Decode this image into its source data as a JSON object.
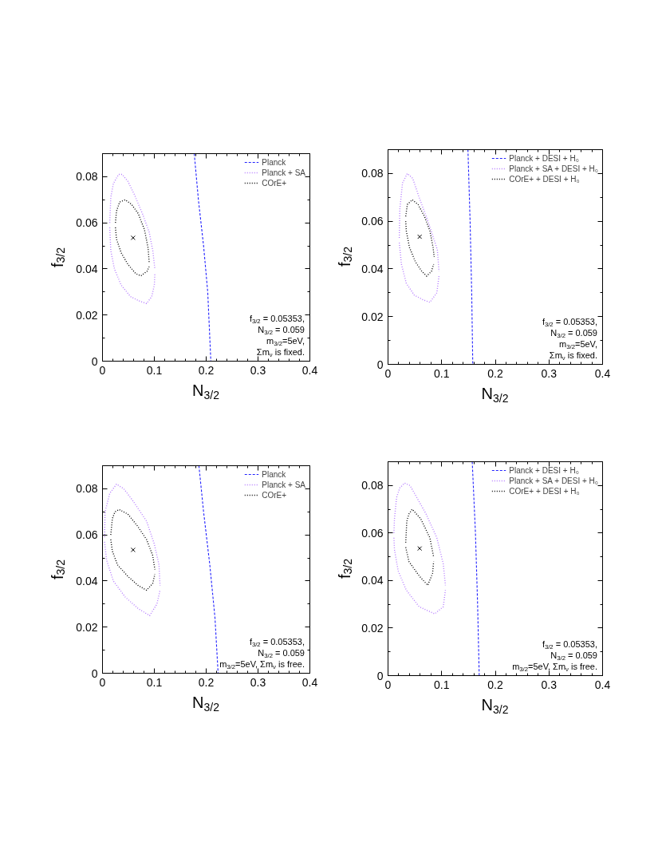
{
  "chart_data": [
    {
      "type": "line",
      "xlabel": "N$_{3/2}$",
      "ylabel": "f$_{3/2}$",
      "xlim": [
        0,
        0.4
      ],
      "ylim": [
        0,
        0.09
      ],
      "xticks": [
        0,
        0.1,
        0.2,
        0.3,
        0.4
      ],
      "yticks": [
        0,
        0.02,
        0.04,
        0.06,
        0.08
      ],
      "legend": "top right",
      "annotations": [
        "f$_{3/2}$ = 0.05353, N$_{3/2}$ = 0.059",
        "m$_{3/2}$=5eV, Σm$_{ν}$ is fixed."
      ],
      "series": [
        {
          "name": "Planck",
          "color": "#2020ff",
          "line_style": "dashed",
          "x": [
            0.177,
            0.185,
            0.195,
            0.203,
            0.207,
            0.209
          ],
          "values": [
            0.09,
            0.07,
            0.05,
            0.03,
            0.01,
            0
          ]
        },
        {
          "name": "Planck + SA",
          "color": "#b57bff",
          "line_style": "dotted",
          "x": [
            0.014,
            0.016,
            0.021,
            0.031,
            0.038,
            0.049,
            0.062,
            0.077,
            0.09,
            0.097,
            0.101
          ],
          "values": [
            0.06,
            0.071,
            0.077,
            0.081,
            0.081,
            0.078,
            0.072,
            0.064,
            0.056,
            0.048,
            0.04
          ]
        },
        {
          "color": "#b57bff",
          "line_style": "dotted",
          "x": [
            0.014,
            0.016,
            0.023,
            0.036,
            0.054,
            0.072,
            0.085,
            0.095,
            0.1,
            0.101
          ],
          "values": [
            0.058,
            0.048,
            0.04,
            0.033,
            0.028,
            0.026,
            0.025,
            0.028,
            0.033,
            0.038
          ]
        },
        {
          "name": "COrE+",
          "color": "#000000",
          "line_style": "dotted",
          "x": [
            0.025,
            0.027,
            0.033,
            0.044,
            0.056,
            0.069,
            0.081,
            0.088,
            0.09
          ],
          "values": [
            0.06,
            0.065,
            0.069,
            0.07,
            0.068,
            0.064,
            0.057,
            0.049,
            0.043
          ]
        },
        {
          "color": "#000000",
          "line_style": "dotted",
          "x": [
            0.025,
            0.027,
            0.036,
            0.049,
            0.064,
            0.074,
            0.086,
            0.09
          ],
          "values": [
            0.058,
            0.053,
            0.047,
            0.042,
            0.038,
            0.037,
            0.039,
            0.041
          ]
        },
        {
          "type": "scatter",
          "marker": "cross",
          "color": "#000000",
          "x": [
            0.059
          ],
          "values": [
            0.0535
          ]
        }
      ]
    },
    {
      "type": "line",
      "xlabel": "N$_{3/2}$",
      "ylabel": "f$_{3/2}$",
      "xlim": [
        0,
        0.4
      ],
      "ylim": [
        0,
        0.09
      ],
      "xticks": [
        0,
        0.1,
        0.2,
        0.3,
        0.4
      ],
      "yticks": [
        0,
        0.02,
        0.04,
        0.06,
        0.08
      ],
      "legend": "top right",
      "annotations": [
        "f$_{3/2}$ = 0.05353, N$_{3/2}$ = 0.059",
        "m$_{3/2}$=5eV, Σm$_{ν}$ is fixed."
      ],
      "series": [
        {
          "name": "Planck + DESI + H₀",
          "color": "#2020ff",
          "line_style": "dashed",
          "x": [
            0.149,
            0.153,
            0.156,
            0.158
          ],
          "values": [
            0.09,
            0.06,
            0.03,
            0
          ]
        },
        {
          "name": "Planck + SA + DESI + H₀",
          "color": "#b57bff",
          "line_style": "dotted",
          "x": [
            0.021,
            0.022,
            0.027,
            0.036,
            0.046,
            0.058,
            0.076,
            0.092,
            0.095
          ],
          "values": [
            0.053,
            0.065,
            0.076,
            0.08,
            0.078,
            0.07,
            0.059,
            0.048,
            0.039
          ]
        },
        {
          "color": "#b57bff",
          "line_style": "dotted",
          "x": [
            0.021,
            0.025,
            0.034,
            0.049,
            0.066,
            0.078,
            0.091,
            0.095
          ],
          "values": [
            0.051,
            0.042,
            0.034,
            0.029,
            0.027,
            0.026,
            0.03,
            0.037
          ]
        },
        {
          "name": "COrE+ + DESI + H₀",
          "color": "#000000",
          "line_style": "dotted",
          "x": [
            0.033,
            0.036,
            0.045,
            0.056,
            0.068,
            0.078,
            0.084,
            0.086
          ],
          "values": [
            0.062,
            0.067,
            0.069,
            0.067,
            0.062,
            0.056,
            0.049,
            0.045
          ]
        },
        {
          "color": "#000000",
          "line_style": "dotted",
          "x": [
            0.033,
            0.034,
            0.04,
            0.051,
            0.063,
            0.072,
            0.081,
            0.085
          ],
          "values": [
            0.06,
            0.056,
            0.049,
            0.043,
            0.039,
            0.037,
            0.039,
            0.042
          ]
        },
        {
          "type": "scatter",
          "marker": "cross",
          "color": "#000000",
          "x": [
            0.059
          ],
          "values": [
            0.0535
          ]
        }
      ]
    },
    {
      "type": "line",
      "xlabel": "N$_{3/2}$",
      "ylabel": "f$_{3/2}$",
      "xlim": [
        0,
        0.4
      ],
      "ylim": [
        0,
        0.09
      ],
      "xticks": [
        0,
        0.1,
        0.2,
        0.3,
        0.4
      ],
      "yticks": [
        0,
        0.02,
        0.04,
        0.06,
        0.08
      ],
      "legend": "top right",
      "annotations": [
        "f$_{3/2}$ = 0.05353, N$_{3/2}$ = 0.059",
        "m$_{3/2}$=5eV, Σm$_{ν}$ is free."
      ],
      "series": [
        {
          "name": "Planck",
          "color": "#2020ff",
          "line_style": "dashed",
          "x": [
            0.186,
            0.195,
            0.207,
            0.217,
            0.223
          ],
          "values": [
            0.09,
            0.07,
            0.047,
            0.024,
            0
          ]
        },
        {
          "name": "Planck + SA",
          "color": "#b57bff",
          "line_style": "dotted",
          "x": [
            0.004,
            0.005,
            0.014,
            0.027,
            0.041,
            0.058,
            0.085,
            0.1,
            0.109,
            0.111
          ],
          "values": [
            0.059,
            0.07,
            0.078,
            0.082,
            0.08,
            0.075,
            0.066,
            0.056,
            0.047,
            0.038
          ]
        },
        {
          "color": "#b57bff",
          "line_style": "dotted",
          "x": [
            0.004,
            0.008,
            0.021,
            0.044,
            0.069,
            0.091,
            0.105,
            0.111
          ],
          "values": [
            0.057,
            0.049,
            0.04,
            0.033,
            0.028,
            0.025,
            0.03,
            0.036
          ]
        },
        {
          "name": "COrE+",
          "color": "#000000",
          "line_style": "dotted",
          "x": [
            0.016,
            0.019,
            0.024,
            0.032,
            0.049,
            0.067,
            0.085,
            0.097,
            0.101
          ],
          "values": [
            0.06,
            0.067,
            0.07,
            0.071,
            0.069,
            0.064,
            0.058,
            0.051,
            0.045
          ]
        },
        {
          "color": "#000000",
          "line_style": "dotted",
          "x": [
            0.016,
            0.019,
            0.029,
            0.049,
            0.069,
            0.085,
            0.097,
            0.101
          ],
          "values": [
            0.058,
            0.053,
            0.047,
            0.042,
            0.038,
            0.036,
            0.039,
            0.043
          ]
        },
        {
          "type": "scatter",
          "marker": "cross",
          "color": "#000000",
          "x": [
            0.059
          ],
          "values": [
            0.0535
          ]
        }
      ]
    },
    {
      "type": "line",
      "xlabel": "N$_{3/2}$",
      "ylabel": "f$_{3/2}$",
      "xlim": [
        0,
        0.4
      ],
      "ylim": [
        0,
        0.09
      ],
      "xticks": [
        0,
        0.1,
        0.2,
        0.3,
        0.4
      ],
      "yticks": [
        0,
        0.02,
        0.04,
        0.06,
        0.08
      ],
      "legend": "top right",
      "annotations": [
        "f$_{3/2}$ = 0.05353, N$_{3/2}$ = 0.059",
        "m$_{3/2}$=5eV, Σm$_{ν}$ is free."
      ],
      "series": [
        {
          "name": "Planck + DESI + H₀",
          "color": "#2020ff",
          "line_style": "dashed",
          "x": [
            0.157,
            0.163,
            0.167,
            0.17
          ],
          "values": [
            0.09,
            0.06,
            0.03,
            0
          ]
        },
        {
          "name": "Planck + SA + DESI + H₀",
          "color": "#b57bff",
          "line_style": "dotted",
          "x": [
            0.011,
            0.012,
            0.016,
            0.022,
            0.031,
            0.041,
            0.051,
            0.071,
            0.091,
            0.103,
            0.107
          ],
          "values": [
            0.06,
            0.066,
            0.075,
            0.079,
            0.081,
            0.08,
            0.076,
            0.068,
            0.058,
            0.047,
            0.038
          ]
        },
        {
          "color": "#b57bff",
          "line_style": "dotted",
          "x": [
            0.011,
            0.012,
            0.019,
            0.034,
            0.058,
            0.087,
            0.103,
            0.107
          ],
          "values": [
            0.058,
            0.053,
            0.044,
            0.036,
            0.029,
            0.026,
            0.029,
            0.036
          ]
        },
        {
          "name": "COrE+ + DESI + H₀",
          "color": "#000000",
          "line_style": "dotted",
          "x": [
            0.033,
            0.035,
            0.039,
            0.045,
            0.061,
            0.078,
            0.085
          ],
          "values": [
            0.056,
            0.065,
            0.068,
            0.07,
            0.066,
            0.058,
            0.05
          ]
        },
        {
          "color": "#000000",
          "line_style": "dotted",
          "x": [
            0.033,
            0.039,
            0.058,
            0.074,
            0.083,
            0.085
          ],
          "values": [
            0.054,
            0.048,
            0.042,
            0.038,
            0.043,
            0.048
          ]
        },
        {
          "type": "scatter",
          "marker": "cross",
          "color": "#000000",
          "x": [
            0.059
          ],
          "values": [
            0.0535
          ]
        }
      ]
    }
  ]
}
